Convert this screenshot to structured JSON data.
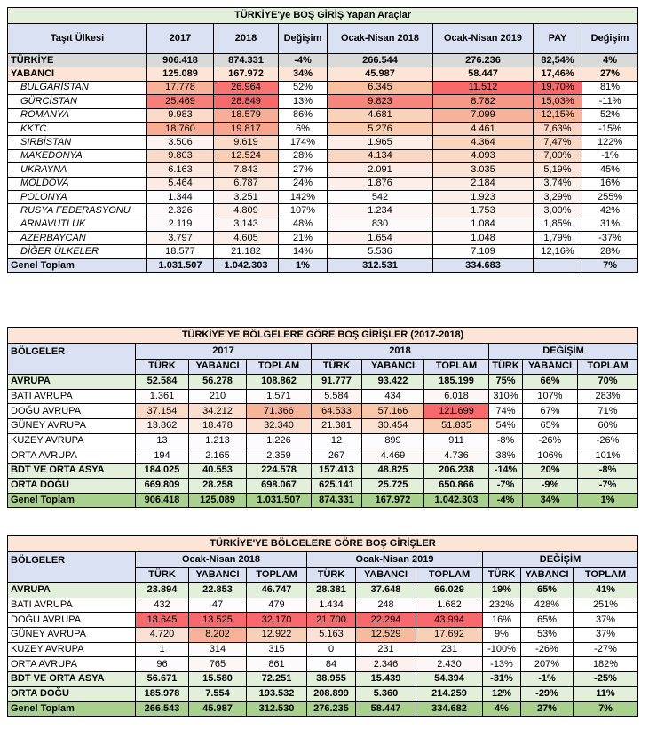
{
  "t1": {
    "title": "TÜRKİYE'ye BOŞ GİRİŞ Yapan Araçlar",
    "headers": [
      "Taşıt Ülkesi",
      "2017",
      "2018",
      "Değişim",
      "Ocak-Nisan 2018",
      "Ocak-Nisan 2019",
      "PAY",
      "Değişim"
    ],
    "rows": [
      {
        "kind": "turkiye",
        "cells": [
          "TÜRKİYE",
          "906.418",
          "874.331",
          "-4%",
          "266.544",
          "276.236",
          "82,54%",
          "4%"
        ]
      },
      {
        "kind": "yabanci",
        "cells": [
          "YABANCI",
          "125.089",
          "167.972",
          "34%",
          "45.987",
          "58.447",
          "17,46%",
          "27%"
        ]
      },
      {
        "kind": "country",
        "cells": [
          "BULGARİSTAN",
          "17.778",
          "26.964",
          "52%",
          "6.345",
          "11.512",
          "19,70%",
          "81%"
        ]
      },
      {
        "kind": "country",
        "cells": [
          "GÜRCİSTAN",
          "25.469",
          "28.849",
          "13%",
          "9.823",
          "8.782",
          "15,03%",
          "-11%"
        ]
      },
      {
        "kind": "country",
        "cells": [
          "ROMANYA",
          "9.983",
          "18.579",
          "86%",
          "4.681",
          "7.099",
          "12,15%",
          "52%"
        ]
      },
      {
        "kind": "country",
        "cells": [
          "KKTC",
          "18.760",
          "19.817",
          "6%",
          "5.276",
          "4.461",
          "7,63%",
          "-15%"
        ]
      },
      {
        "kind": "country",
        "cells": [
          "SIRBİSTAN",
          "3.506",
          "9.619",
          "174%",
          "1.965",
          "4.364",
          "7,47%",
          "122%"
        ]
      },
      {
        "kind": "country",
        "cells": [
          "MAKEDONYA",
          "9.803",
          "12.524",
          "28%",
          "4.134",
          "4.093",
          "7,00%",
          "-1%"
        ]
      },
      {
        "kind": "country",
        "cells": [
          "UKRAYNA",
          "6.163",
          "7.843",
          "27%",
          "2.091",
          "3.035",
          "5,19%",
          "45%"
        ]
      },
      {
        "kind": "country",
        "cells": [
          "MOLDOVA",
          "5.464",
          "6.787",
          "24%",
          "1.876",
          "2.184",
          "3,74%",
          "16%"
        ]
      },
      {
        "kind": "country",
        "cells": [
          "POLONYA",
          "1.344",
          "3.251",
          "142%",
          "542",
          "1.923",
          "3,29%",
          "255%"
        ]
      },
      {
        "kind": "country",
        "cells": [
          "RUSYA FEDERASYONU",
          "2.326",
          "4.809",
          "107%",
          "1.234",
          "1.753",
          "3,00%",
          "42%"
        ]
      },
      {
        "kind": "country",
        "cells": [
          "ARNAVUTLUK",
          "2.119",
          "3.143",
          "48%",
          "830",
          "1.084",
          "1,85%",
          "31%"
        ]
      },
      {
        "kind": "country",
        "cells": [
          "AZERBAYCAN",
          "3.797",
          "4.605",
          "21%",
          "1.654",
          "1.048",
          "1,79%",
          "-37%"
        ]
      },
      {
        "kind": "other",
        "cells": [
          "DİĞER ÜLKELER",
          "18.577",
          "21.182",
          "14%",
          "5.536",
          "7.109",
          "12,16%",
          "28%"
        ]
      },
      {
        "kind": "total",
        "cells": [
          "Genel Toplam",
          "1.031.507",
          "1.042.303",
          "1%",
          "312.531",
          "334.683",
          "",
          "7%"
        ]
      }
    ]
  },
  "t2": {
    "title": "TÜRKİYE'YE BÖLGELERE GÖRE BOŞ GİRİŞLER (2017-2018)",
    "region_label": "BÖLGELER",
    "groups": [
      "2017",
      "2018",
      "DEĞİŞİM"
    ],
    "sub": [
      "TÜRK",
      "YABANCI",
      "TOPLAM",
      "TÜRK",
      "YABANCI",
      "TOPLAM",
      "TÜRK",
      "YABANCI",
      "TOPLAM"
    ],
    "rows": [
      {
        "kind": "group",
        "cells": [
          "AVRUPA",
          "52.584",
          "56.278",
          "108.862",
          "91.777",
          "93.422",
          "185.199",
          "75%",
          "66%",
          "70%"
        ]
      },
      {
        "kind": "sub",
        "cells": [
          "BATI AVRUPA",
          "1.361",
          "210",
          "1.571",
          "5.584",
          "434",
          "6.018",
          "310%",
          "107%",
          "283%"
        ]
      },
      {
        "kind": "sub",
        "cells": [
          "DOĞU AVRUPA",
          "37.154",
          "34.212",
          "71.366",
          "64.533",
          "57.166",
          "121.699",
          "74%",
          "67%",
          "71%"
        ]
      },
      {
        "kind": "sub",
        "cells": [
          "GÜNEY AVRUPA",
          "13.862",
          "18.478",
          "32.340",
          "21.381",
          "30.454",
          "51.835",
          "54%",
          "65%",
          "60%"
        ]
      },
      {
        "kind": "sub",
        "cells": [
          "KUZEY AVRUPA",
          "13",
          "1.213",
          "1.226",
          "12",
          "899",
          "911",
          "-8%",
          "-26%",
          "-26%"
        ]
      },
      {
        "kind": "sub",
        "cells": [
          "ORTA AVRUPA",
          "194",
          "2.165",
          "2.359",
          "267",
          "4.469",
          "4.736",
          "38%",
          "106%",
          "101%"
        ]
      },
      {
        "kind": "group",
        "cells": [
          "BDT VE ORTA ASYA",
          "184.025",
          "40.553",
          "224.578",
          "157.413",
          "48.825",
          "206.238",
          "-14%",
          "20%",
          "-8%"
        ]
      },
      {
        "kind": "group",
        "cells": [
          "ORTA DOĞU",
          "669.809",
          "28.258",
          "698.067",
          "625.141",
          "25.725",
          "650.866",
          "-7%",
          "-9%",
          "-7%"
        ]
      },
      {
        "kind": "total",
        "cells": [
          "Genel Toplam",
          "906.418",
          "125.089",
          "1.031.507",
          "874.331",
          "167.972",
          "1.042.303",
          "-4%",
          "34%",
          "1%"
        ]
      }
    ]
  },
  "t3": {
    "title": "TÜRKİYE'YE BÖLGELERE GÖRE BOŞ GİRİŞLER",
    "region_label": "BÖLGELER",
    "groups": [
      "Ocak-Nisan 2018",
      "Ocak-Nisan 2019",
      "DEĞİŞİM"
    ],
    "sub": [
      "TÜRK",
      "YABANCI",
      "TOPLAM",
      "TÜRK",
      "YABANCI",
      "TOPLAM",
      "TÜRK",
      "YABANCI",
      "TOPLAM"
    ],
    "rows": [
      {
        "kind": "group",
        "cells": [
          "AVRUPA",
          "23.894",
          "22.853",
          "46.747",
          "28.381",
          "37.648",
          "66.029",
          "19%",
          "65%",
          "41%"
        ]
      },
      {
        "kind": "sub",
        "cells": [
          "BATI AVRUPA",
          "432",
          "47",
          "479",
          "1.434",
          "248",
          "1.682",
          "232%",
          "428%",
          "251%"
        ]
      },
      {
        "kind": "sub",
        "cells": [
          "DOĞU AVRUPA",
          "18.645",
          "13.525",
          "32.170",
          "21.700",
          "22.294",
          "43.994",
          "16%",
          "65%",
          "37%"
        ]
      },
      {
        "kind": "sub",
        "cells": [
          "GÜNEY AVRUPA",
          "4.720",
          "8.202",
          "12.922",
          "5.163",
          "12.529",
          "17.692",
          "9%",
          "53%",
          "37%"
        ]
      },
      {
        "kind": "sub",
        "cells": [
          "KUZEY AVRUPA",
          "1",
          "314",
          "315",
          "0",
          "231",
          "231",
          "-100%",
          "-26%",
          "-27%"
        ]
      },
      {
        "kind": "sub",
        "cells": [
          "ORTA AVRUPA",
          "96",
          "765",
          "861",
          "84",
          "2.346",
          "2.430",
          "-13%",
          "207%",
          "182%"
        ]
      },
      {
        "kind": "group",
        "cells": [
          "BDT VE ORTA ASYA",
          "56.671",
          "15.580",
          "72.251",
          "38.955",
          "15.439",
          "54.394",
          "-31%",
          "-1%",
          "-25%"
        ]
      },
      {
        "kind": "group",
        "cells": [
          "ORTA DOĞU",
          "185.978",
          "7.554",
          "193.532",
          "208.899",
          "5.360",
          "214.259",
          "12%",
          "-29%",
          "11%"
        ]
      },
      {
        "kind": "total",
        "cells": [
          "Genel Toplam",
          "266.543",
          "45.987",
          "312.530",
          "276.235",
          "58.447",
          "334.682",
          "4%",
          "27%",
          "7%"
        ]
      }
    ]
  },
  "colors": {
    "heat_low": "#fdfcff",
    "heat_high": "#f8696b",
    "heat_mid": "#f8c4a4"
  }
}
